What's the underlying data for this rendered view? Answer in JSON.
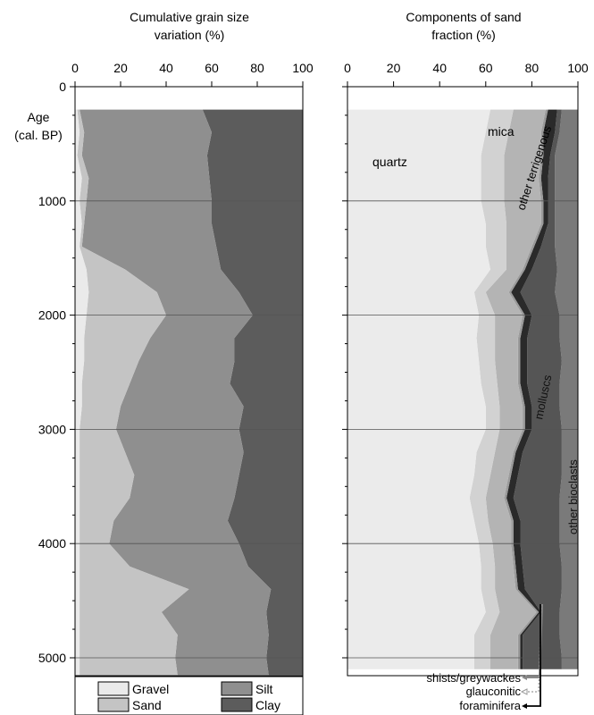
{
  "chart_data": [
    {
      "type": "area",
      "title": "Cumulative grain size variation (%)",
      "ylabel": "Age (cal. BP)",
      "xlim": [
        0,
        100
      ],
      "ylim": [
        0,
        5300
      ],
      "x_ticks": [
        "0",
        "20",
        "40",
        "60",
        "80",
        "100"
      ],
      "y_ticks": [
        "0",
        "1000",
        "2000",
        "3000",
        "4000",
        "5000"
      ],
      "y_axis_label": [
        "Age",
        "(cal. BP)"
      ],
      "legend": {
        "placement": "bottom",
        "items": [
          {
            "label": "Gravel",
            "color": "#eaeaea"
          },
          {
            "label": "Silt",
            "color": "#8f8f8f"
          },
          {
            "label": "Sand",
            "color": "#c4c4c4"
          },
          {
            "label": "Clay",
            "color": "#5c5c5c"
          }
        ]
      },
      "age": [
        200,
        400,
        600,
        800,
        1000,
        1200,
        1400,
        1600,
        1800,
        2000,
        2200,
        2400,
        2600,
        2800,
        3000,
        3200,
        3400,
        3600,
        3800,
        4000,
        4200,
        4400,
        4600,
        4800,
        5000,
        5150
      ],
      "series": [
        {
          "name": "Gravel",
          "color": "#eaeaea",
          "cumulative": [
            1,
            2,
            1,
            3,
            2,
            3,
            2,
            5,
            6,
            5,
            4,
            4,
            3,
            3,
            2,
            2,
            2,
            2,
            2,
            2,
            2,
            2,
            2,
            2,
            2,
            2
          ]
        },
        {
          "name": "Sand",
          "color": "#c4c4c4",
          "cumulative": [
            2,
            4,
            3,
            6,
            5,
            4,
            3,
            22,
            36,
            40,
            33,
            28,
            24,
            20,
            18,
            22,
            26,
            24,
            17,
            15,
            24,
            50,
            38,
            45,
            44,
            45
          ]
        },
        {
          "name": "Silt",
          "color": "#8f8f8f",
          "cumulative": [
            56,
            60,
            58,
            59,
            60,
            60,
            62,
            64,
            72,
            78,
            70,
            70,
            68,
            74,
            72,
            74,
            72,
            70,
            67,
            72,
            76,
            86,
            84,
            85,
            84,
            85
          ]
        },
        {
          "name": "Clay",
          "color": "#5c5c5c",
          "cumulative": [
            100,
            100,
            100,
            100,
            100,
            100,
            100,
            100,
            100,
            100,
            100,
            100,
            100,
            100,
            100,
            100,
            100,
            100,
            100,
            100,
            100,
            100,
            100,
            100,
            100,
            100
          ]
        }
      ]
    },
    {
      "type": "area",
      "title": "Components of sand fraction (%)",
      "xlim": [
        0,
        100
      ],
      "ylim": [
        0,
        5300
      ],
      "x_ticks": [
        "0",
        "20",
        "40",
        "60",
        "80",
        "100"
      ],
      "age": [
        200,
        400,
        600,
        800,
        1000,
        1200,
        1400,
        1600,
        1800,
        2000,
        2200,
        2400,
        2600,
        2800,
        3000,
        3200,
        3400,
        3600,
        3800,
        4000,
        4200,
        4400,
        4600,
        4800,
        5000,
        5100
      ],
      "series": [
        {
          "name": "quartz",
          "color": "#ebebeb",
          "cumulative": [
            62,
            60,
            58,
            58,
            58,
            60,
            60,
            62,
            55,
            57,
            56,
            57,
            58,
            60,
            60,
            56,
            55,
            53,
            55,
            57,
            58,
            58,
            60,
            55,
            55,
            55
          ]
        },
        {
          "name": "mica",
          "color": "#d2d2d2",
          "cumulative": [
            72,
            70,
            68,
            68,
            68,
            69,
            69,
            69,
            60,
            64,
            64,
            64,
            65,
            66,
            66,
            64,
            62,
            60,
            61,
            63,
            64,
            64,
            66,
            62,
            62,
            62
          ]
        },
        {
          "name": "other terrigenous",
          "color": "#b4b4b4",
          "cumulative": [
            86,
            84,
            84,
            83,
            84,
            84,
            80,
            76,
            70,
            76,
            74,
            74,
            74,
            76,
            76,
            72,
            70,
            68,
            71,
            71,
            72,
            73,
            82,
            74,
            74,
            74
          ]
        },
        {
          "name": "shists/greywackes",
          "color": "#9a9a9a",
          "cumulative": [
            87,
            85,
            85,
            84,
            85,
            85,
            81,
            77,
            71,
            77,
            75,
            75,
            75,
            77,
            77,
            73,
            71,
            69,
            72,
            72,
            73,
            74,
            83,
            75,
            75,
            75
          ]
        },
        {
          "name": "glauconitic",
          "color": "#ffffff",
          "cumulative": [
            87,
            85,
            85,
            84,
            85,
            85,
            81,
            77,
            71,
            77,
            75,
            75,
            75,
            77,
            77,
            73,
            71,
            69,
            72,
            72,
            73,
            74,
            83,
            75,
            75,
            75
          ]
        },
        {
          "name": "foraminifera",
          "color": "#2a2a2a",
          "cumulative": [
            91,
            90,
            88,
            87,
            87,
            87,
            84,
            80,
            75,
            80,
            78,
            78,
            78,
            80,
            80,
            76,
            74,
            72,
            75,
            75,
            76,
            77,
            84,
            76,
            76,
            76
          ]
        },
        {
          "name": "molluscs",
          "color": "#555555",
          "cumulative": [
            93,
            92,
            90,
            90,
            90,
            90,
            90,
            91,
            90,
            92,
            92,
            93,
            92,
            92,
            93,
            93,
            93,
            92,
            92,
            92,
            93,
            93,
            92,
            92,
            93,
            93
          ]
        },
        {
          "name": "other bioclasts",
          "color": "#7a7a7a",
          "cumulative": [
            100,
            100,
            100,
            100,
            100,
            100,
            100,
            100,
            100,
            100,
            100,
            100,
            100,
            100,
            100,
            100,
            100,
            100,
            100,
            100,
            100,
            100,
            100,
            100,
            100,
            100
          ]
        }
      ],
      "labels": {
        "quartz": "quartz",
        "mica": "mica",
        "other_terrigenous": "other terrigenous",
        "molluscs": "molluscs",
        "other_bioclasts": "other bioclasts",
        "shists": "shists/greywackes",
        "glauconitic": "glauconitic",
        "foraminifera": "foraminifera"
      }
    }
  ]
}
